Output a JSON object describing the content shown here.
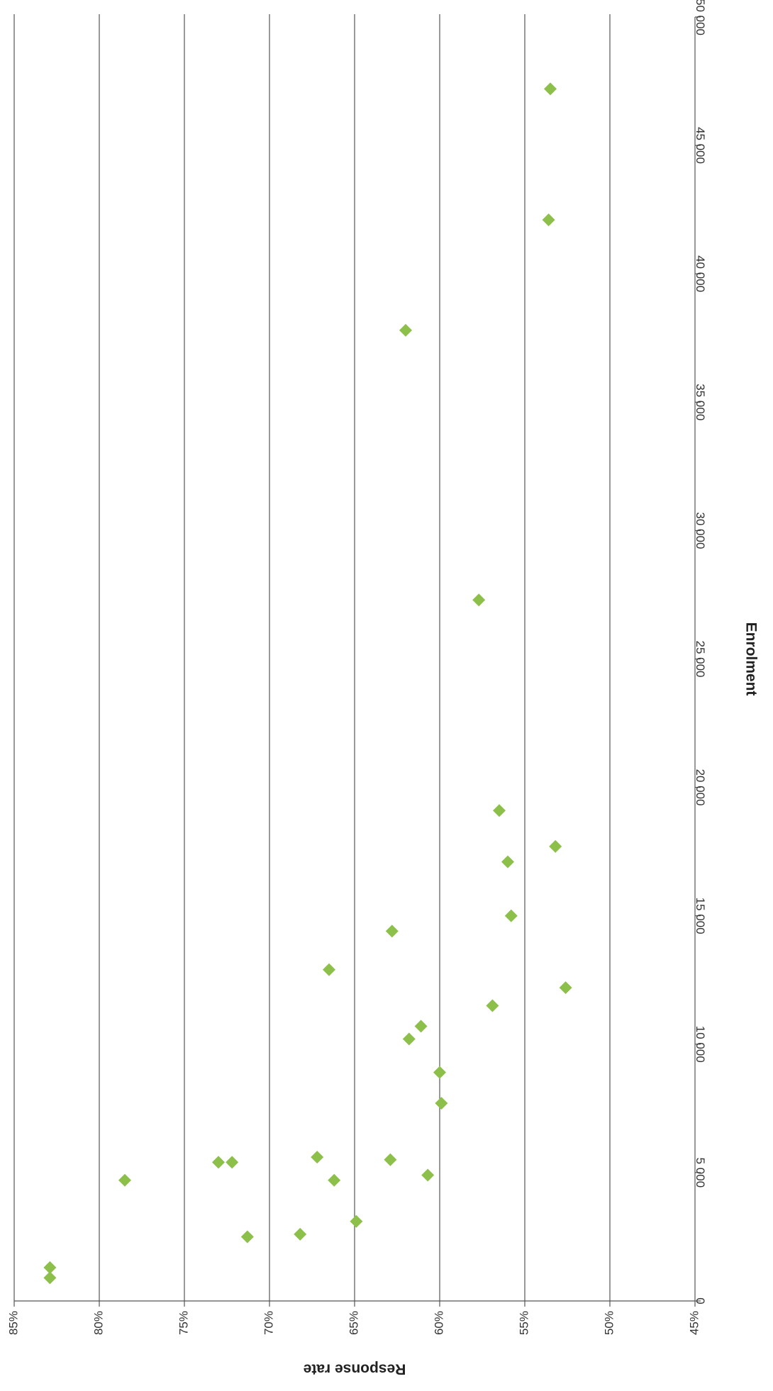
{
  "chart_data": {
    "type": "scatter",
    "xlabel": "Enrolment",
    "ylabel": "Response rate",
    "xlim": [
      0,
      50000
    ],
    "ylim": [
      45,
      85
    ],
    "x_ticks": [
      0,
      5000,
      10000,
      15000,
      20000,
      25000,
      30000,
      35000,
      40000,
      45000,
      50000
    ],
    "x_tick_labels": [
      "0",
      "5 000",
      "10 000",
      "15 000",
      "20 000",
      "25 000",
      "30 000",
      "35 000",
      "40 000",
      "45 000",
      "50 000"
    ],
    "y_ticks": [
      45,
      50,
      55,
      60,
      65,
      70,
      75,
      80,
      85
    ],
    "y_tick_labels": [
      "45%",
      "50%",
      "55%",
      "60%",
      "65%",
      "70%",
      "75%",
      "80%",
      "85%"
    ],
    "grid": "horizontal",
    "orientation": "rotated 90 degrees clockwise",
    "marker_color": "#8dc04a",
    "marker": "diamond",
    "points": [
      {
        "x": 900,
        "y": 82.9
      },
      {
        "x": 1300,
        "y": 82.9
      },
      {
        "x": 2500,
        "y": 71.3
      },
      {
        "x": 2600,
        "y": 68.2
      },
      {
        "x": 3100,
        "y": 64.9
      },
      {
        "x": 4700,
        "y": 78.5
      },
      {
        "x": 4700,
        "y": 66.2
      },
      {
        "x": 4900,
        "y": 60.7
      },
      {
        "x": 5400,
        "y": 73.0
      },
      {
        "x": 5400,
        "y": 72.2
      },
      {
        "x": 5600,
        "y": 67.2
      },
      {
        "x": 5500,
        "y": 62.9
      },
      {
        "x": 7700,
        "y": 59.9
      },
      {
        "x": 8900,
        "y": 60.0
      },
      {
        "x": 10200,
        "y": 61.8
      },
      {
        "x": 10700,
        "y": 61.1
      },
      {
        "x": 11500,
        "y": 56.9
      },
      {
        "x": 12200,
        "y": 52.6
      },
      {
        "x": 12900,
        "y": 66.5
      },
      {
        "x": 14400,
        "y": 62.8
      },
      {
        "x": 15000,
        "y": 55.8
      },
      {
        "x": 17100,
        "y": 56.0
      },
      {
        "x": 17700,
        "y": 53.2
      },
      {
        "x": 19100,
        "y": 56.5
      },
      {
        "x": 27300,
        "y": 57.7
      },
      {
        "x": 37800,
        "y": 62.0
      },
      {
        "x": 42100,
        "y": 53.6
      },
      {
        "x": 47200,
        "y": 53.5
      }
    ]
  }
}
